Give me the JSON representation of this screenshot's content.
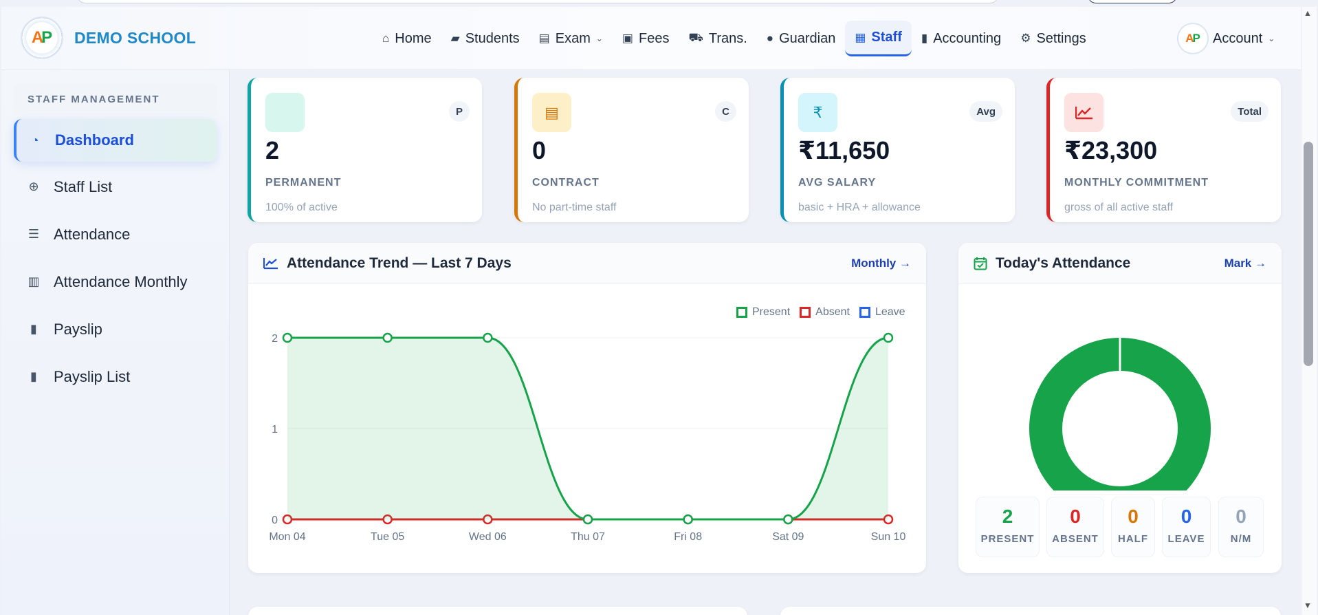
{
  "brand": {
    "name": "DEMO SCHOOL",
    "logo_text_a": "A",
    "logo_text_p": "P"
  },
  "nav": {
    "items": [
      {
        "label": "Home",
        "icon": "home-icon",
        "glyph": "⌂"
      },
      {
        "label": "Students",
        "icon": "graduation-cap-icon",
        "glyph": "🎓"
      },
      {
        "label": "Exam",
        "icon": "document-icon",
        "glyph": "▤"
      },
      {
        "label": "Fees",
        "icon": "money-icon",
        "glyph": "▣"
      },
      {
        "label": "Trans.",
        "icon": "bus-icon",
        "glyph": "⛟"
      },
      {
        "label": "Guardian",
        "icon": "person-icon",
        "glyph": "●"
      },
      {
        "label": "Staff",
        "icon": "briefcase-icon",
        "glyph": "▦"
      },
      {
        "label": "Accounting",
        "icon": "book-icon",
        "glyph": "▮"
      },
      {
        "label": "Settings",
        "icon": "gear-icon",
        "glyph": "⚙"
      }
    ],
    "account": "Account"
  },
  "sidebar": {
    "section": "STAFF MANAGEMENT",
    "items": [
      {
        "label": "Dashboard",
        "icon": "gauge-icon",
        "glyph": "◔"
      },
      {
        "label": "Staff List",
        "icon": "plus-circle-icon",
        "glyph": "⊕"
      },
      {
        "label": "Attendance",
        "icon": "list-icon",
        "glyph": "☰"
      },
      {
        "label": "Attendance Monthly",
        "icon": "bar-chart-icon",
        "glyph": "▥"
      },
      {
        "label": "Payslip",
        "icon": "book-icon",
        "glyph": "▮"
      },
      {
        "label": "Payslip List",
        "icon": "book-icon",
        "glyph": "▮"
      }
    ]
  },
  "stats": [
    {
      "value": "2",
      "label": "PERMANENT",
      "sub": "100% of active",
      "tag": "P",
      "icon": "blank-icon",
      "glyph": "",
      "accent": "#0ea5a4",
      "ibg": "#d7f7ee",
      "icolor": "#10b981"
    },
    {
      "value": "0",
      "label": "CONTRACT",
      "sub": "No part-time staff",
      "tag": "C",
      "icon": "file-icon",
      "glyph": "▤",
      "accent": "#d97706",
      "ibg": "#fdf0c8",
      "icolor": "#d97706"
    },
    {
      "value": "₹11,650",
      "label": "AVG SALARY",
      "sub": "basic + HRA + allowance",
      "tag": "Avg",
      "icon": "rupee-icon",
      "glyph": "₹",
      "accent": "#0891b2",
      "ibg": "#d4f5fb",
      "icolor": "#0891b2"
    },
    {
      "value": "₹23,300",
      "label": "MONTHLY COMMITMENT",
      "sub": "gross of all active staff",
      "tag": "Total",
      "icon": "trend-icon",
      "glyph": "📈",
      "accent": "#dc2626",
      "ibg": "#fde2e2",
      "icolor": "#dc2626"
    }
  ],
  "trend": {
    "title": "Attendance Trend — Last 7 Days",
    "link": "Monthly →"
  },
  "today": {
    "title": "Today's Attendance",
    "link": "Mark →",
    "counts": [
      {
        "value": "2",
        "label": "PRESENT",
        "color": "#16a34a"
      },
      {
        "value": "0",
        "label": "ABSENT",
        "color": "#dc2626"
      },
      {
        "value": "0",
        "label": "HALF",
        "color": "#d97706"
      },
      {
        "value": "0",
        "label": "LEAVE",
        "color": "#2563eb"
      },
      {
        "value": "0",
        "label": "N/M",
        "color": "#94a3b8"
      }
    ]
  },
  "chart_data": [
    {
      "type": "area",
      "title": "",
      "x": [
        "Mon 04",
        "Tue 05",
        "Wed 06",
        "Thu 07",
        "Fri 08",
        "Sat 09",
        "Sun 10"
      ],
      "ylim": [
        0,
        2
      ],
      "yticks": [
        "0",
        "1",
        "2"
      ],
      "legend_position": "top-right",
      "series": [
        {
          "name": "Present",
          "color": "#16a34a",
          "values": [
            2,
            2,
            2,
            0,
            0,
            0,
            2
          ]
        },
        {
          "name": "Absent",
          "color": "#dc2626",
          "values": [
            0,
            0,
            0,
            0,
            0,
            0,
            0
          ]
        },
        {
          "name": "Leave",
          "color": "#2563eb",
          "values": [
            0,
            0,
            0,
            0,
            0,
            0,
            0
          ]
        }
      ]
    },
    {
      "type": "pie",
      "title": "",
      "categories": [
        "Present",
        "Absent",
        "Half",
        "Leave",
        "N/M"
      ],
      "values": [
        2,
        0,
        0,
        0,
        0
      ],
      "colors": [
        "#16a34a",
        "#dc2626",
        "#d97706",
        "#2563eb",
        "#94a3b8"
      ]
    }
  ]
}
